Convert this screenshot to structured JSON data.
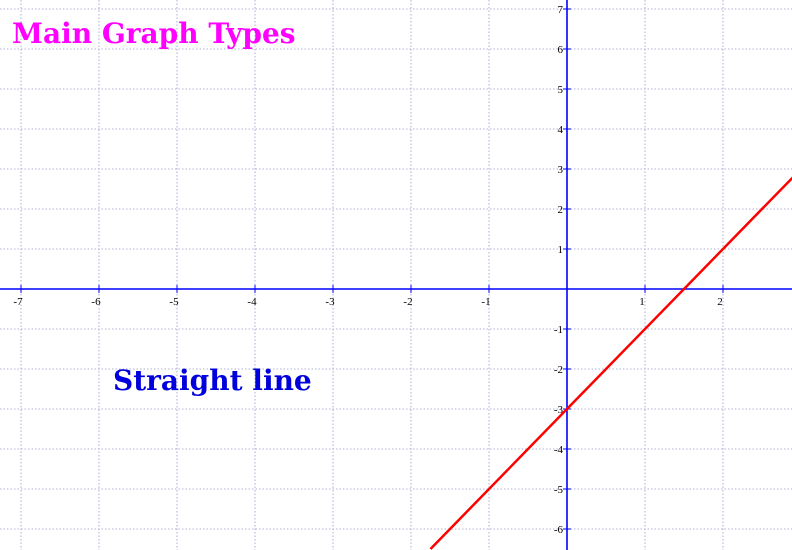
{
  "chart_data": {
    "type": "line",
    "title": "Main Graph Types",
    "subtitle": "Straight line",
    "xlabel": "",
    "ylabel": "",
    "xlim": [
      -7.25,
      2.85
    ],
    "ylim": [
      -6.5,
      7.1
    ],
    "grid": true,
    "x_ticks": [
      -7,
      -6,
      -5,
      -4,
      -3,
      -2,
      -1,
      1,
      2
    ],
    "y_ticks": [
      7,
      6,
      5,
      4,
      3,
      2,
      1,
      -1,
      -2,
      -3,
      -4,
      -5,
      -6
    ],
    "series": [
      {
        "function": "y = 2x - 3",
        "slope": 2,
        "intercept": -3,
        "x": [
          -1.75,
          2.9
        ],
        "y": [
          -6.5,
          2.8
        ],
        "color": "#ff0000"
      }
    ]
  },
  "colors": {
    "title": "#ff00ff",
    "subtitle": "#0000dd",
    "axes": "#0000ff",
    "grid": "#9999cc",
    "line": "#ff0000"
  }
}
